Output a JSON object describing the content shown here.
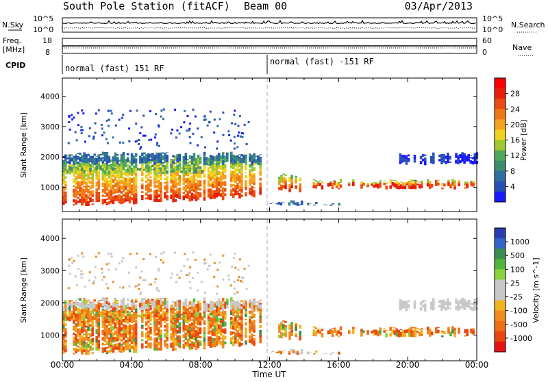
{
  "header": {
    "station": "South Pole Station (fitACF)",
    "beam": "Beam 00",
    "date": "03/Apr/2013"
  },
  "summary": {
    "nsky_label": "N.Sky",
    "nsky_ticks": [
      "10^5",
      "10^0"
    ],
    "nsearch_label": "N.Search",
    "nsearch_ticks": [
      "10^5",
      "10^0"
    ],
    "freq_label_line1": "Freq.",
    "freq_label_line2": "[MHz]",
    "freq_ticks": [
      "18",
      "8"
    ],
    "nave_label": "Nave",
    "nave_ticks": [
      "60",
      "0"
    ],
    "cpid_label": "CPID",
    "cpid_segments": [
      "normal (fast) 151 RF",
      "normal (fast) -151 RF"
    ]
  },
  "colors": {
    "power_scale": [
      "#1a1aff",
      "#2850b4",
      "#2e6ea0",
      "#3c8c6e",
      "#4ea85a",
      "#a0c832",
      "#f0d21e",
      "#f5a01e",
      "#f07814",
      "#eb4b0f",
      "#e61e0a",
      "#ff0000"
    ],
    "velocity_scale": [
      "#2a3cb4",
      "#3264c8",
      "#3c8c50",
      "#50b43c",
      "#8cd23c",
      "#c8c8c8",
      "#c8c8c8",
      "#f0b41e",
      "#f08c1e",
      "#ee6e14",
      "#ea460f",
      "#e61414"
    ]
  },
  "chart_data": [
    {
      "type": "heatmap",
      "name": "power-panel",
      "ylabel": "Slant Range [km]",
      "xlabel": "Time UT",
      "xticks": [
        "00:00",
        "04:00",
        "08:00",
        "12:00",
        "16:00",
        "20:00",
        "00:00"
      ],
      "yticks": [
        "1000",
        "2000",
        "3000",
        "4000"
      ],
      "ylim": [
        200,
        4600
      ],
      "xlim_hours": [
        0,
        24
      ],
      "colorbar_label": "Power [dB]",
      "colorbar_ticks": [
        "4",
        "8",
        "12",
        "16",
        "20",
        "24",
        "28"
      ],
      "bands": [
        {
          "t0": 0.0,
          "t1": 11.5,
          "r_start": 400,
          "r_end": 1900,
          "core": 3
        },
        {
          "t0": 0.0,
          "t1": 8.5,
          "r_start": 1500,
          "r_end": 1700,
          "core": 2
        },
        {
          "t0": 0.0,
          "t1": 11.5,
          "r_start": 1800,
          "r_end": 2100,
          "core": 1
        },
        {
          "t0": 12.5,
          "t1": 14.0,
          "r_start": 900,
          "r_end": 1400,
          "core": 3
        },
        {
          "t0": 14.5,
          "t1": 23.8,
          "r_start": 1000,
          "r_end": 1200,
          "core": 3
        },
        {
          "t0": 12.0,
          "t1": 16.0,
          "r_start": 450,
          "r_end": 500,
          "core": 1
        },
        {
          "t0": 19.5,
          "t1": 24.0,
          "r_start": 1800,
          "r_end": 2100,
          "core": 0
        }
      ]
    },
    {
      "type": "heatmap",
      "name": "velocity-panel",
      "ylabel": "Slant Range [km]",
      "xlabel": "Time UT",
      "xticks": [
        "00:00",
        "04:00",
        "08:00",
        "12:00",
        "16:00",
        "20:00",
        "00:00"
      ],
      "yticks": [
        "1000",
        "2000",
        "3000",
        "4000"
      ],
      "ylim": [
        200,
        4600
      ],
      "xlim_hours": [
        0,
        24
      ],
      "colorbar_label": "Velocity [m s^-1]",
      "colorbar_ticks": [
        "1000",
        "500",
        "100",
        "25",
        "-25",
        "-100",
        "-500",
        "-1000"
      ]
    }
  ]
}
